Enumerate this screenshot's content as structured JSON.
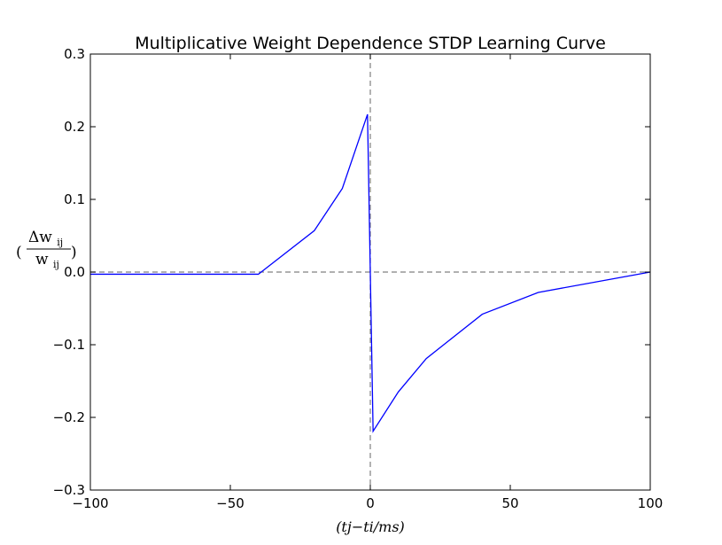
{
  "chart_data": {
    "type": "line",
    "title": "Multiplicative Weight Dependence STDP Learning Curve",
    "xlabel": "(tj−ti/ms)",
    "ylabel": {
      "open_paren": "(",
      "numerator": "Δw",
      "numerator_sub": "ij",
      "denominator": "w",
      "denominator_sub": "ij",
      "close_paren": ")"
    },
    "xlim": [
      -100,
      100
    ],
    "ylim": [
      -0.3,
      0.3
    ],
    "xticks": [
      -100,
      -50,
      0,
      50,
      100
    ],
    "xtick_labels": [
      "−100",
      "−50",
      "0",
      "50",
      "100"
    ],
    "yticks": [
      -0.3,
      -0.2,
      -0.1,
      0.0,
      0.1,
      0.2,
      0.3
    ],
    "ytick_labels": [
      "−0.3",
      "−0.2",
      "−0.1",
      "0.0",
      "0.1",
      "0.2",
      "0.3"
    ],
    "grid": false,
    "series": [
      {
        "color": "#0000ff",
        "x": [
          -100,
          -40,
          -20,
          -10,
          -1,
          1,
          10,
          20,
          40,
          60,
          100
        ],
        "y": [
          -0.003,
          -0.003,
          0.057,
          0.115,
          0.217,
          -0.219,
          -0.165,
          -0.119,
          -0.058,
          -0.028,
          0.0
        ]
      }
    ],
    "reference_lines": [
      {
        "orientation": "horizontal",
        "value": 0,
        "style": "dashed",
        "color": "#808080"
      },
      {
        "orientation": "vertical",
        "value": 0,
        "style": "dashed",
        "color": "#808080"
      }
    ]
  }
}
